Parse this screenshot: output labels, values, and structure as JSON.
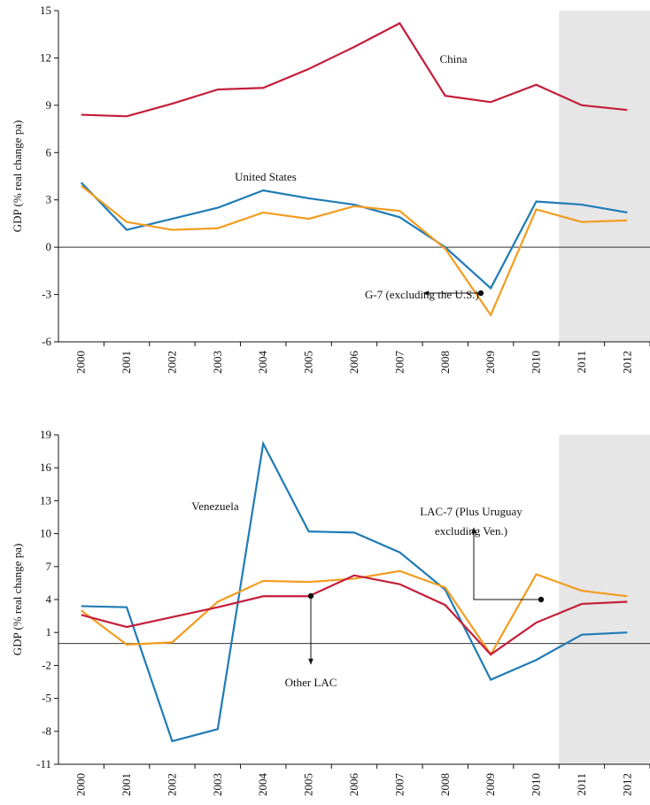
{
  "chart_data": [
    {
      "type": "line",
      "y_label": "GDP (% real change pa)",
      "categories": [
        "2000",
        "2001",
        "2002",
        "2003",
        "2004",
        "2005",
        "2006",
        "2007",
        "2008",
        "2009",
        "2010",
        "2011",
        "2012"
      ],
      "ylim": [
        -6,
        15
      ],
      "yticks": [
        -6,
        -3,
        0,
        3,
        6,
        9,
        12,
        15
      ],
      "series": [
        {
          "name": "China",
          "color": "#c41e3a",
          "values": [
            8.4,
            8.3,
            9.1,
            10.0,
            10.1,
            11.3,
            12.7,
            14.2,
            9.6,
            9.2,
            10.3,
            9.0,
            8.7
          ]
        },
        {
          "name": "United States",
          "color": "#1f7bb6",
          "values": [
            4.1,
            1.1,
            1.8,
            2.5,
            3.6,
            3.1,
            2.7,
            1.9,
            0.0,
            -2.6,
            2.9,
            2.7,
            2.2
          ]
        },
        {
          "name": "G-7 (excluding the U.S.)",
          "color": "#f39c1f",
          "values": [
            3.9,
            1.6,
            1.1,
            1.2,
            2.2,
            1.8,
            2.6,
            2.3,
            -0.1,
            -4.3,
            2.4,
            1.6,
            1.7
          ]
        }
      ]
    },
    {
      "type": "line",
      "y_label": "GDP (% real change pa)",
      "categories": [
        "2000",
        "2001",
        "2002",
        "2003",
        "2004",
        "2005",
        "2006",
        "2007",
        "2008",
        "2009",
        "2010",
        "2011",
        "2012"
      ],
      "ylim": [
        -11,
        19
      ],
      "yticks": [
        -11,
        -8,
        -5,
        -2,
        1,
        4,
        7,
        10,
        13,
        16,
        19
      ],
      "series": [
        {
          "name": "Venezuela",
          "color": "#1f7bb6",
          "values": [
            3.4,
            3.3,
            -8.9,
            -7.8,
            18.2,
            10.2,
            10.1,
            8.3,
            4.9,
            -3.3,
            -1.5,
            0.8,
            1.0
          ]
        },
        {
          "name": [
            "LAC-7 (Plus Uruguay",
            "excluding Ven.)"
          ],
          "color": "#f39c1f",
          "values": [
            3.0,
            -0.1,
            0.1,
            3.8,
            5.7,
            5.6,
            5.9,
            6.6,
            5.1,
            -1.0,
            6.3,
            4.8,
            4.3
          ]
        },
        {
          "name": "Other LAC",
          "color": "#c41e3a",
          "values": [
            2.6,
            1.5,
            2.4,
            3.3,
            4.3,
            4.3,
            6.2,
            5.4,
            3.5,
            -1.0,
            1.9,
            3.6,
            3.8
          ]
        }
      ]
    }
  ]
}
